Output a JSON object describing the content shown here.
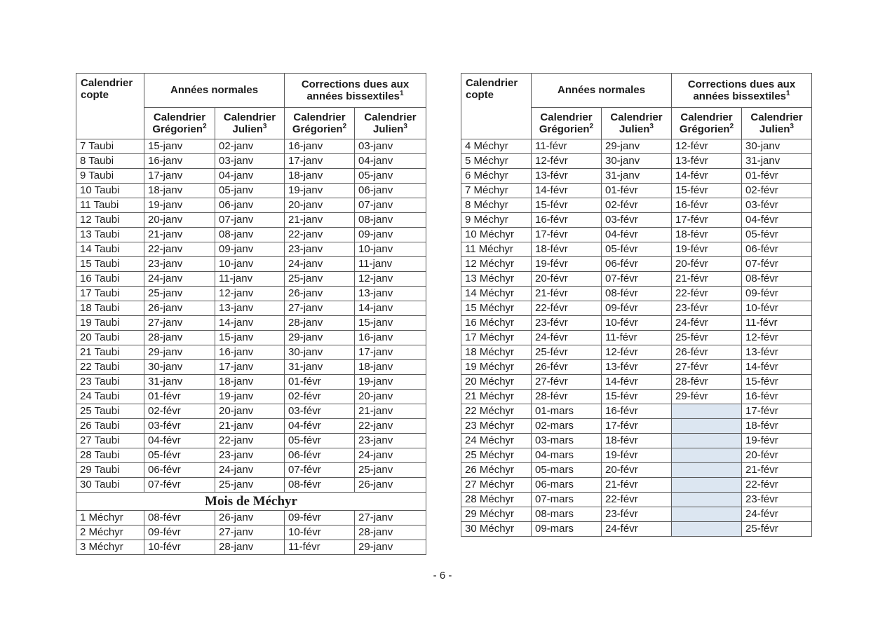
{
  "page": {
    "number_label": "- 6 -"
  },
  "colors": {
    "shaded_cell": "#dce6f1",
    "border": "#595959",
    "text": "#1c1c1c"
  },
  "table_header": {
    "copte": "Calendrier copte",
    "normal_years": "Années normales",
    "corrections": "Corrections dues aux années bissextiles",
    "corrections_sup": "1",
    "gregorian": "Calendrier Grégorien",
    "gregorian_sup": "2",
    "julian": "Calendrier Julien",
    "julian_sup": "3"
  },
  "left_table": {
    "rows": [
      [
        "7 Taubi",
        "15-janv",
        "02-janv",
        "16-janv",
        "03-janv"
      ],
      [
        "8 Taubi",
        "16-janv",
        "03-janv",
        "17-janv",
        "04-janv"
      ],
      [
        "9 Taubi",
        "17-janv",
        "04-janv",
        "18-janv",
        "05-janv"
      ],
      [
        "10 Taubi",
        "18-janv",
        "05-janv",
        "19-janv",
        "06-janv"
      ],
      [
        "11 Taubi",
        "19-janv",
        "06-janv",
        "20-janv",
        "07-janv"
      ],
      [
        "12 Taubi",
        "20-janv",
        "07-janv",
        "21-janv",
        "08-janv"
      ],
      [
        "13 Taubi",
        "21-janv",
        "08-janv",
        "22-janv",
        "09-janv"
      ],
      [
        "14 Taubi",
        "22-janv",
        "09-janv",
        "23-janv",
        "10-janv"
      ],
      [
        "15 Taubi",
        "23-janv",
        "10-janv",
        "24-janv",
        "11-janv"
      ],
      [
        "16 Taubi",
        "24-janv",
        "11-janv",
        "25-janv",
        "12-janv"
      ],
      [
        "17 Taubi",
        "25-janv",
        "12-janv",
        "26-janv",
        "13-janv"
      ],
      [
        "18 Taubi",
        "26-janv",
        "13-janv",
        "27-janv",
        "14-janv"
      ],
      [
        "19 Taubi",
        "27-janv",
        "14-janv",
        "28-janv",
        "15-janv"
      ],
      [
        "20 Taubi",
        "28-janv",
        "15-janv",
        "29-janv",
        "16-janv"
      ],
      [
        "21 Taubi",
        "29-janv",
        "16-janv",
        "30-janv",
        "17-janv"
      ],
      [
        "22 Taubi",
        "30-janv",
        "17-janv",
        "31-janv",
        "18-janv"
      ],
      [
        "23 Taubi",
        "31-janv",
        "18-janv",
        "01-févr",
        "19-janv"
      ],
      [
        "24 Taubi",
        "01-févr",
        "19-janv",
        "02-févr",
        "20-janv"
      ],
      [
        "25 Taubi",
        "02-févr",
        "20-janv",
        "03-févr",
        "21-janv"
      ],
      [
        "26 Taubi",
        "03-févr",
        "21-janv",
        "04-févr",
        "22-janv"
      ],
      [
        "27 Taubi",
        "04-févr",
        "22-janv",
        "05-févr",
        "23-janv"
      ],
      [
        "28 Taubi",
        "05-févr",
        "23-janv",
        "06-févr",
        "24-janv"
      ],
      [
        "29 Taubi",
        "06-févr",
        "24-janv",
        "07-févr",
        "25-janv"
      ],
      [
        "30 Taubi",
        "07-févr",
        "25-janv",
        "08-févr",
        "26-janv"
      ],
      {
        "section": "Mois de Méchyr"
      },
      [
        "1 Méchyr",
        "08-févr",
        "26-janv",
        "09-févr",
        "27-janv"
      ],
      [
        "2 Méchyr",
        "09-févr",
        "27-janv",
        "10-févr",
        "28-janv"
      ],
      [
        "3 Méchyr",
        "10-févr",
        "28-janv",
        "11-févr",
        "29-janv"
      ]
    ]
  },
  "right_table": {
    "rows": [
      [
        "4 Méchyr",
        "11-févr",
        "29-janv",
        "12-févr",
        "30-janv"
      ],
      [
        "5 Méchyr",
        "12-févr",
        "30-janv",
        "13-févr",
        "31-janv"
      ],
      [
        "6 Méchyr",
        "13-févr",
        "31-janv",
        "14-févr",
        "01-févr"
      ],
      [
        "7 Méchyr",
        "14-févr",
        "01-févr",
        "15-févr",
        "02-févr"
      ],
      [
        "8 Méchyr",
        "15-févr",
        "02-févr",
        "16-févr",
        "03-févr"
      ],
      [
        "9 Méchyr",
        "16-févr",
        "03-févr",
        "17-févr",
        "04-févr"
      ],
      [
        "10 Méchyr",
        "17-févr",
        "04-févr",
        "18-févr",
        "05-févr"
      ],
      [
        "11 Méchyr",
        "18-févr",
        "05-févr",
        "19-févr",
        "06-févr"
      ],
      [
        "12 Méchyr",
        "19-févr",
        "06-févr",
        "20-févr",
        "07-févr"
      ],
      [
        "13 Méchyr",
        "20-févr",
        "07-févr",
        "21-févr",
        "08-févr"
      ],
      [
        "14 Méchyr",
        "21-févr",
        "08-févr",
        "22-févr",
        "09-févr"
      ],
      [
        "15 Méchyr",
        "22-févr",
        "09-févr",
        "23-févr",
        "10-févr"
      ],
      [
        "16 Méchyr",
        "23-févr",
        "10-févr",
        "24-févr",
        "11-févr"
      ],
      [
        "17 Méchyr",
        "24-févr",
        "11-févr",
        "25-févr",
        "12-févr"
      ],
      [
        "18 Méchyr",
        "25-févr",
        "12-févr",
        "26-févr",
        "13-févr"
      ],
      [
        "19 Méchyr",
        "26-févr",
        "13-févr",
        "27-févr",
        "14-févr"
      ],
      [
        "20 Méchyr",
        "27-févr",
        "14-févr",
        "28-févr",
        "15-févr"
      ],
      [
        "21 Méchyr",
        "28-févr",
        "15-févr",
        "29-févr",
        "16-févr"
      ],
      [
        "22 Méchyr",
        "01-mars",
        "16-févr",
        null,
        "17-févr"
      ],
      [
        "23 Méchyr",
        "02-mars",
        "17-févr",
        null,
        "18-févr"
      ],
      [
        "24 Méchyr",
        "03-mars",
        "18-févr",
        null,
        "19-févr"
      ],
      [
        "25 Méchyr",
        "04-mars",
        "19-févr",
        null,
        "20-févr"
      ],
      [
        "26 Méchyr",
        "05-mars",
        "20-févr",
        null,
        "21-févr"
      ],
      [
        "27 Méchyr",
        "06-mars",
        "21-févr",
        null,
        "22-févr"
      ],
      [
        "28 Méchyr",
        "07-mars",
        "22-févr",
        null,
        "23-févr"
      ],
      [
        "29 Méchyr",
        "08-mars",
        "23-févr",
        null,
        "24-févr"
      ],
      [
        "30 Méchyr",
        "09-mars",
        "24-févr",
        null,
        "25-févr"
      ]
    ]
  }
}
